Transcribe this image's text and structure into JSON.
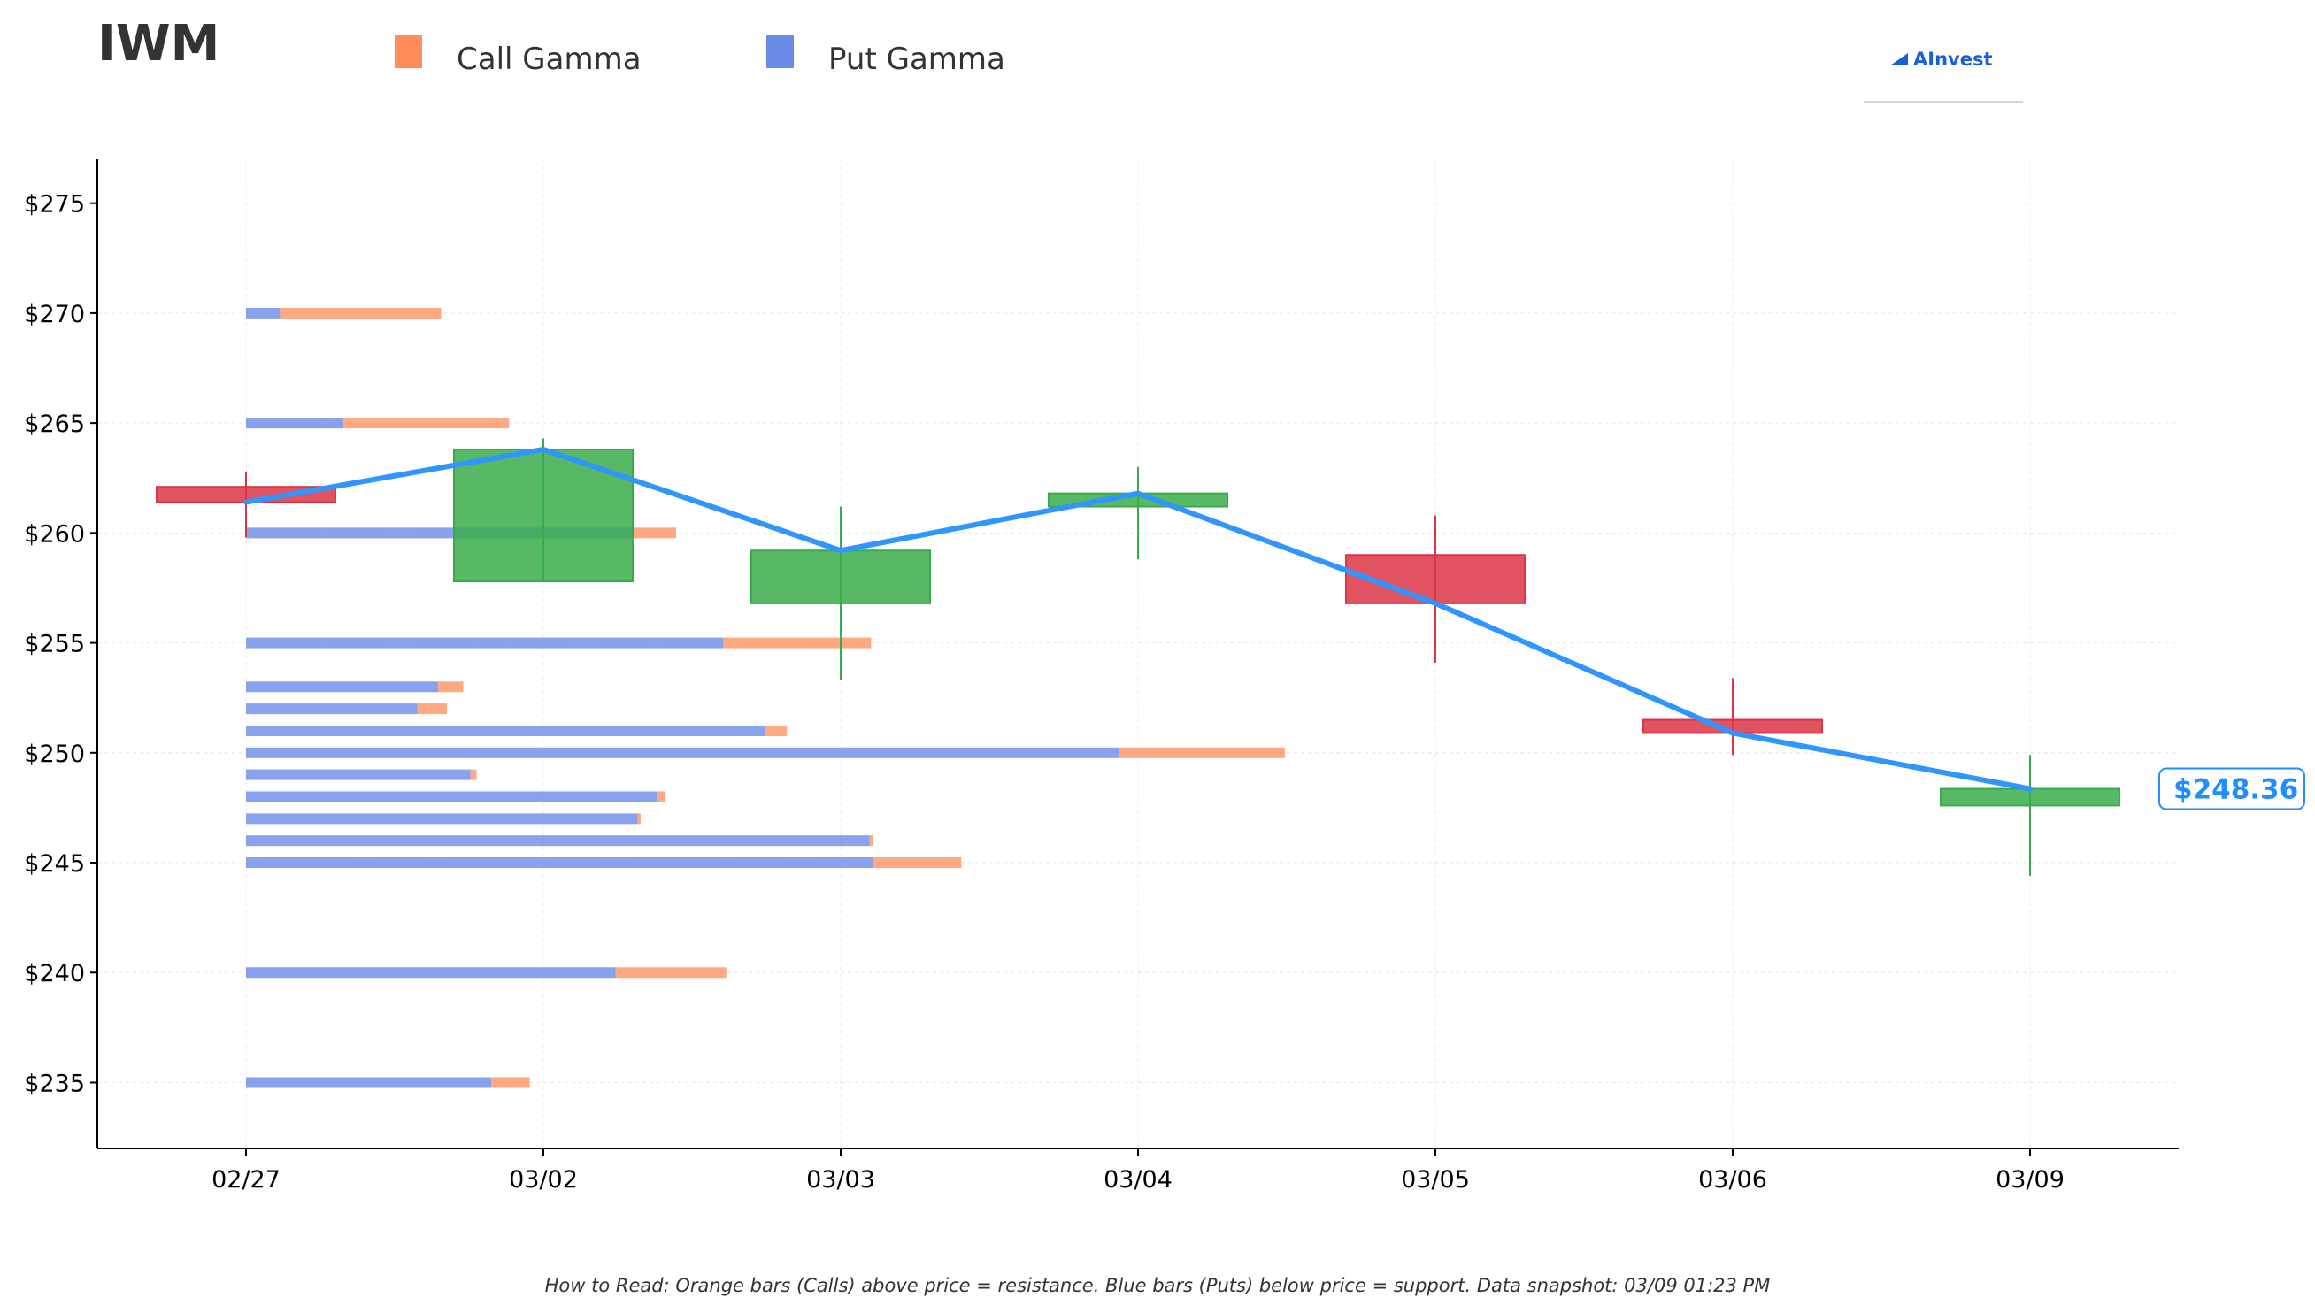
{
  "header": {
    "ticker": "IWM",
    "legend": [
      {
        "label": "Call Gamma",
        "color": "#ff8c5a"
      },
      {
        "label": "Put Gamma",
        "color": "#6b8be8"
      }
    ],
    "brand": "AInvest"
  },
  "footer_note": "How to Read: Orange bars (Calls) above price = resistance. Blue bars (Puts) below price = support. Data snapshot: 03/09 01:23 PM",
  "last_price_label": "$248.36",
  "colors": {
    "call": "#ff8c5a",
    "put": "#6b8be8",
    "up": "#3aab4a",
    "down": "#dc3545",
    "line": "#2f95ff"
  },
  "chart_data": {
    "type": "candlestick",
    "categories": [
      "02/27",
      "03/02",
      "03/03",
      "03/04",
      "03/05",
      "03/06",
      "03/09"
    ],
    "ylim": [
      232,
      277
    ],
    "yticks": [
      235,
      240,
      245,
      250,
      255,
      260,
      265,
      270,
      275
    ],
    "ytick_labels": [
      "$235",
      "$240",
      "$245",
      "$250",
      "$255",
      "$260",
      "$265",
      "$270",
      "$275"
    ],
    "grid": true,
    "candles": [
      {
        "date": "02/27",
        "open": 262.1,
        "high": 262.8,
        "low": 259.8,
        "close": 261.4
      },
      {
        "date": "03/02",
        "open": 257.8,
        "high": 264.3,
        "low": 257.8,
        "close": 263.8
      },
      {
        "date": "03/03",
        "open": 256.8,
        "high": 261.2,
        "low": 253.3,
        "close": 259.2
      },
      {
        "date": "03/04",
        "open": 261.2,
        "high": 263.0,
        "low": 258.8,
        "close": 261.8
      },
      {
        "date": "03/05",
        "open": 259.0,
        "high": 260.8,
        "low": 254.1,
        "close": 256.8
      },
      {
        "date": "03/06",
        "open": 251.5,
        "high": 253.4,
        "low": 249.9,
        "close": 250.9
      },
      {
        "date": "03/09",
        "open": 247.6,
        "high": 249.9,
        "low": 244.4,
        "close": 248.36
      }
    ],
    "close_line": [
      261.4,
      263.8,
      259.2,
      261.8,
      256.8,
      250.9,
      248.36
    ],
    "gamma_levels": [
      {
        "strike": 270,
        "put": 0.23,
        "call": 1.09
      },
      {
        "strike": 265,
        "put": 0.66,
        "call": 1.12
      },
      {
        "strike": 260,
        "put": 2.62,
        "call": 0.29
      },
      {
        "strike": 255,
        "put": 3.23,
        "call": 1.0
      },
      {
        "strike": 253,
        "put": 1.3,
        "call": 0.17
      },
      {
        "strike": 252,
        "put": 1.16,
        "call": 0.2
      },
      {
        "strike": 251,
        "put": 3.51,
        "call": 0.15
      },
      {
        "strike": 250,
        "put": 5.91,
        "call": 1.12
      },
      {
        "strike": 249,
        "put": 1.52,
        "call": 0.04
      },
      {
        "strike": 248,
        "put": 2.78,
        "call": 0.06
      },
      {
        "strike": 247,
        "put": 2.65,
        "call": 0.02
      },
      {
        "strike": 246,
        "put": 4.22,
        "call": 0.02
      },
      {
        "strike": 245,
        "put": 4.24,
        "call": 0.6
      },
      {
        "strike": 240,
        "put": 2.5,
        "call": 0.75
      },
      {
        "strike": 235,
        "put": 1.66,
        "call": 0.26
      }
    ]
  }
}
